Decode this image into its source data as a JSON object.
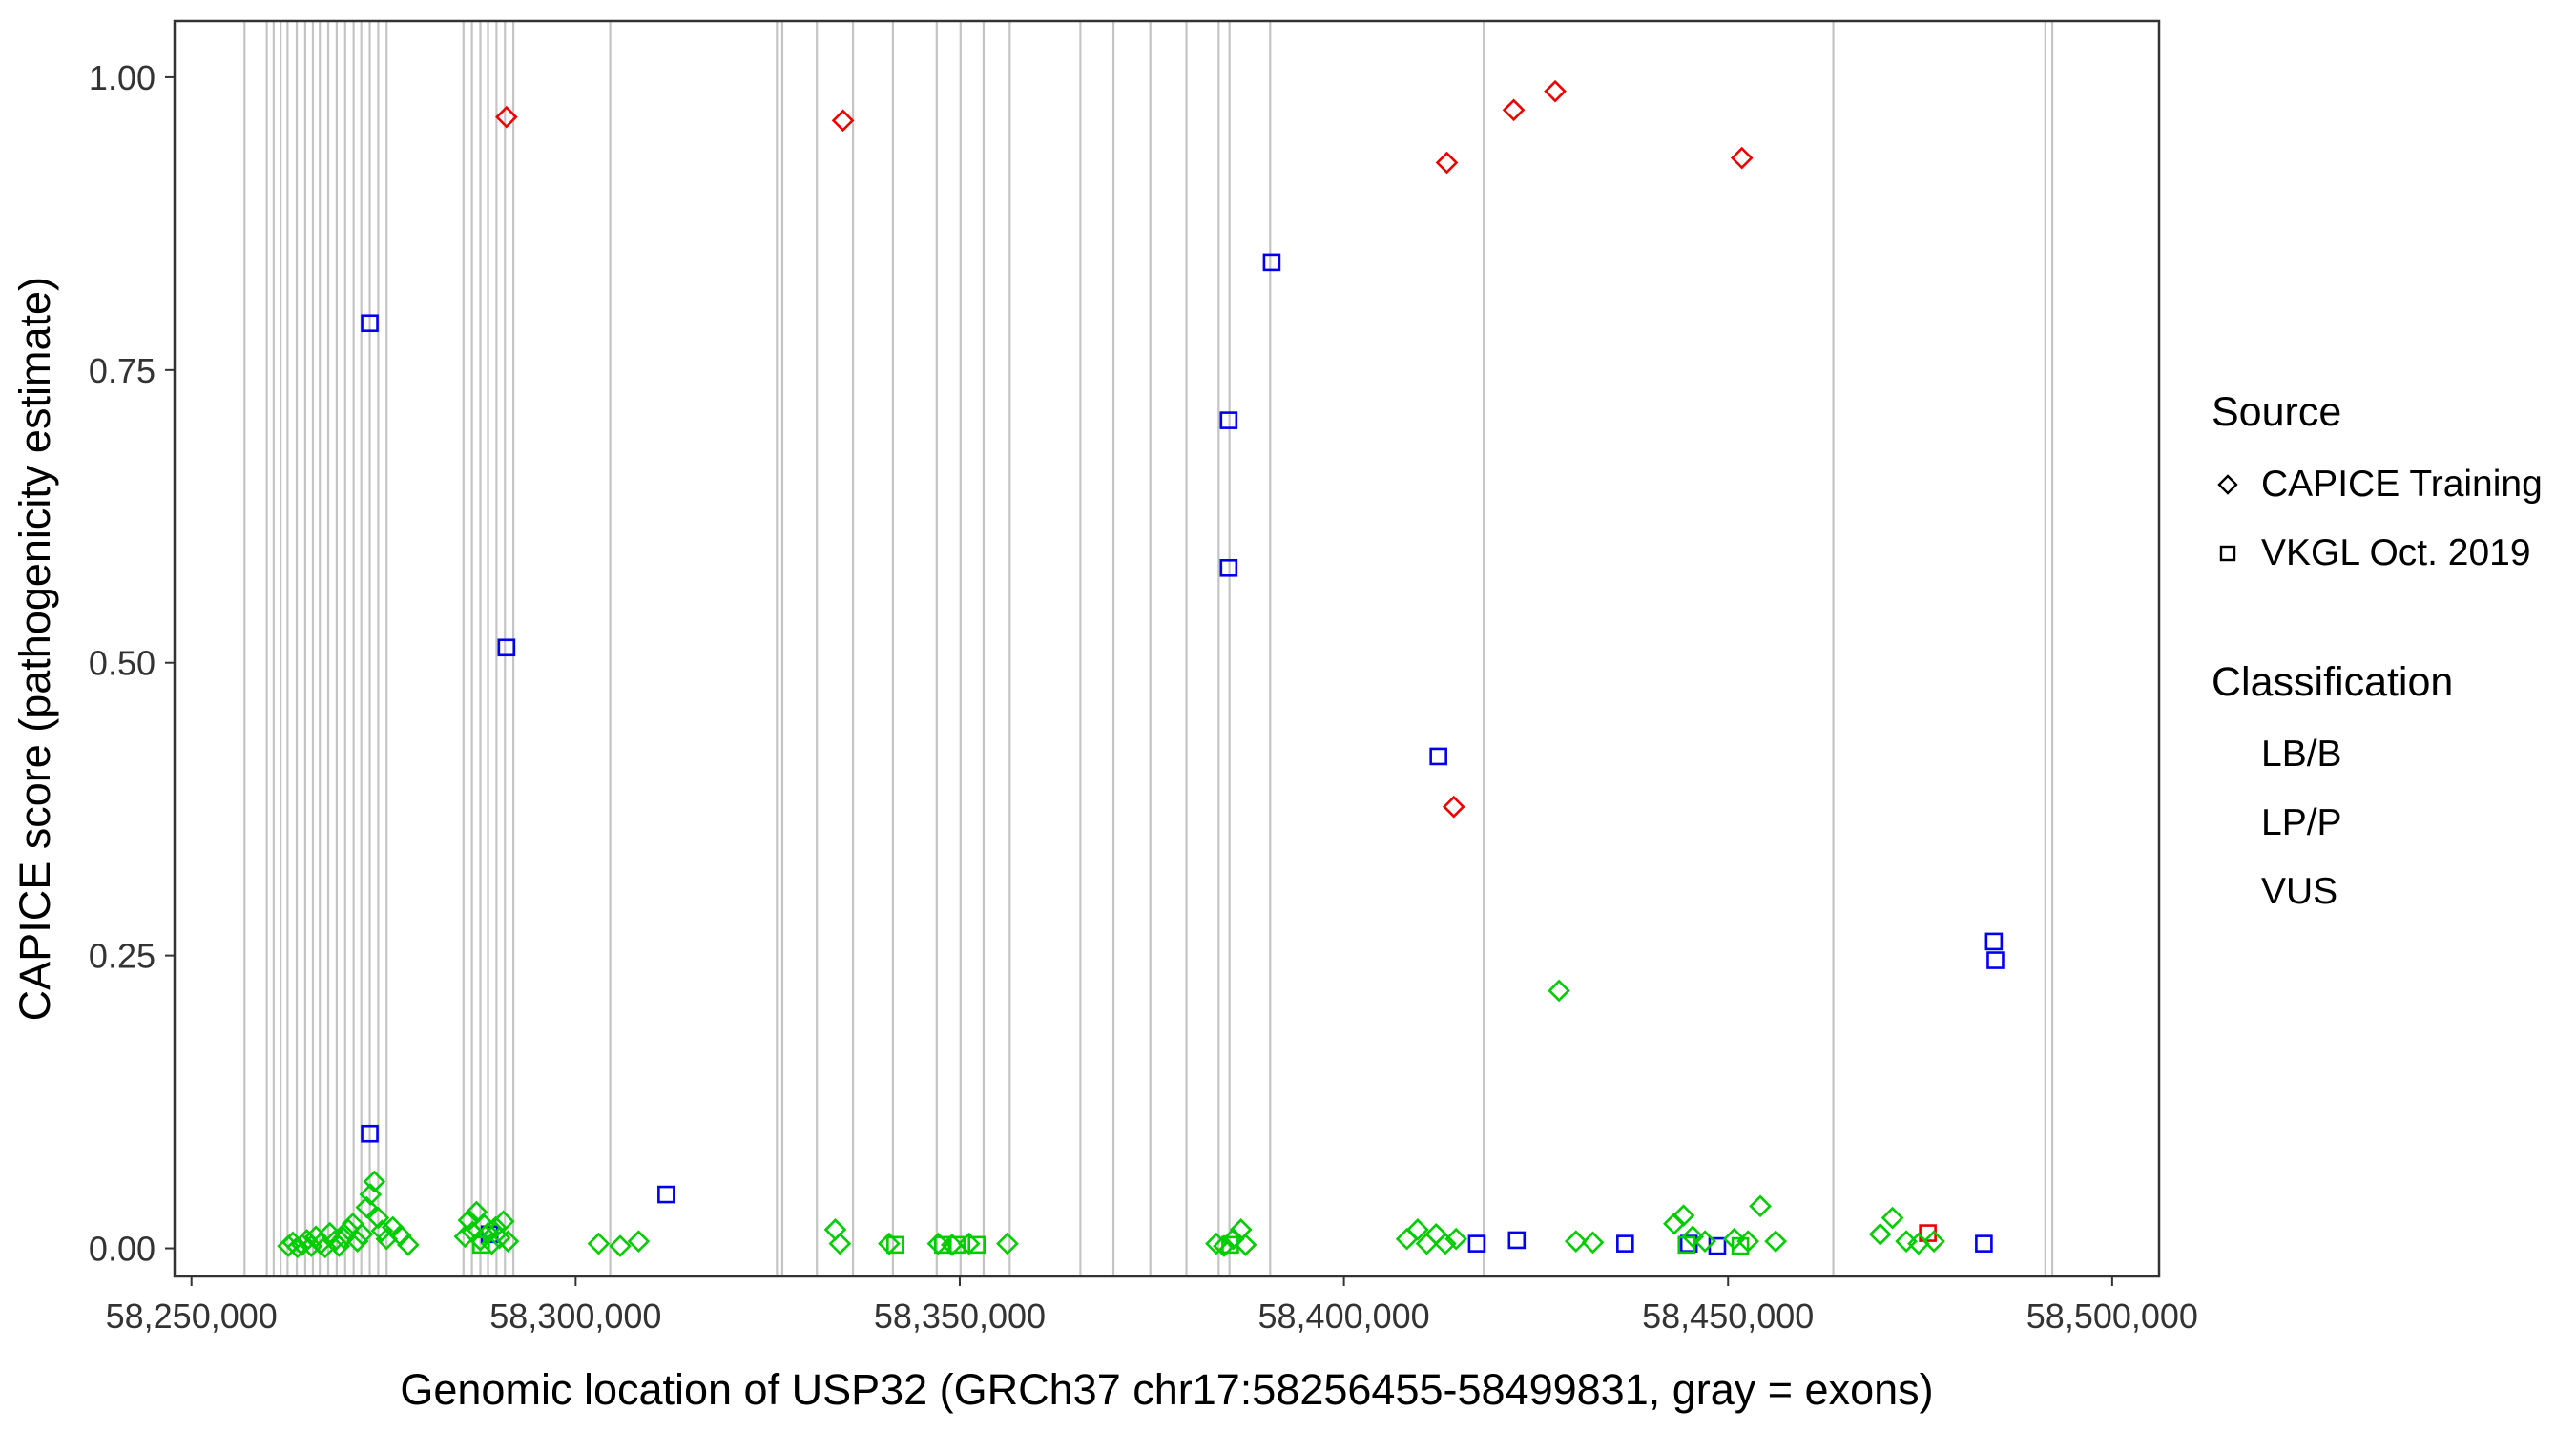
{
  "axes": {
    "x_label": "Genomic location of USP32 (GRCh37 chr17:58256455-58499831, gray = exons)",
    "y_label": "CAPICE score (pathogenicity estimate)"
  },
  "legend": {
    "source_title": "Source",
    "source_items": [
      {
        "label": "CAPICE Training",
        "shape": "diamond"
      },
      {
        "label": "VKGL Oct. 2019",
        "shape": "square"
      }
    ],
    "classification_title": "Classification",
    "classification_items": [
      {
        "label": "LB/B",
        "color": "#00CC00"
      },
      {
        "label": "LP/P",
        "color": "#EE0000"
      },
      {
        "label": "VUS",
        "color": "#0000EE"
      }
    ]
  },
  "chart_data": {
    "type": "scatter",
    "title": "",
    "xlabel": "Genomic location of USP32 (GRCh37 chr17:58256455-58499831, gray = exons)",
    "ylabel": "CAPICE score (pathogenicity estimate)",
    "xlim": [
      58247800,
      58506100
    ],
    "ylim": [
      -0.024,
      1.048
    ],
    "grid": false,
    "x_ticks": [
      {
        "value": 58250000,
        "label": "58,250,000"
      },
      {
        "value": 58300000,
        "label": "58,300,000"
      },
      {
        "value": 58350000,
        "label": "58,350,000"
      },
      {
        "value": 58400000,
        "label": "58,400,000"
      },
      {
        "value": 58450000,
        "label": "58,450,000"
      },
      {
        "value": 58500000,
        "label": "58,500,000"
      }
    ],
    "y_ticks": [
      {
        "value": 0.0,
        "label": "0.00"
      },
      {
        "value": 0.25,
        "label": "0.25"
      },
      {
        "value": 0.5,
        "label": "0.50"
      },
      {
        "value": 0.75,
        "label": "0.75"
      },
      {
        "value": 1.0,
        "label": "1.00"
      }
    ],
    "exon_color": "#C4C4C4",
    "exon_positions": [
      58256900,
      58259800,
      58260700,
      58261600,
      58262500,
      58263700,
      58264800,
      58265800,
      58266700,
      58267800,
      58268900,
      58270000,
      58271100,
      58272100,
      58273200,
      58274300,
      58275400,
      58285400,
      58286500,
      58287600,
      58288600,
      58289700,
      58290800,
      58291900,
      58304500,
      58326200,
      58326900,
      58331400,
      58336100,
      58341300,
      58347000,
      58350100,
      58353100,
      58356500,
      58365700,
      58370000,
      58374800,
      58379500,
      58383700,
      58385100,
      58390400,
      58418200,
      58463700,
      58491300,
      58492200
    ],
    "colors": {
      "LB/B": "#00CC00",
      "LP/P": "#EE0000",
      "VUS": "#0000EE"
    },
    "shapes": {
      "CAPICE Training": "diamond",
      "VKGL Oct. 2019": "square"
    },
    "points": {
      "columns": [
        "genomic_position",
        "capice_score",
        "source",
        "classification"
      ],
      "rows": [
        [
          58291000,
          0.966,
          "CAPICE Training",
          "LP/P"
        ],
        [
          58334800,
          0.963,
          "CAPICE Training",
          "LP/P"
        ],
        [
          58413400,
          0.927,
          "CAPICE Training",
          "LP/P"
        ],
        [
          58422100,
          0.972,
          "CAPICE Training",
          "LP/P"
        ],
        [
          58427500,
          0.988,
          "CAPICE Training",
          "LP/P"
        ],
        [
          58451800,
          0.931,
          "CAPICE Training",
          "LP/P"
        ],
        [
          58414300,
          0.377,
          "CAPICE Training",
          "LP/P"
        ],
        [
          58476000,
          0.013,
          "VKGL Oct. 2019",
          "LP/P"
        ],
        [
          58273200,
          0.79,
          "VKGL Oct. 2019",
          "VUS"
        ],
        [
          58291000,
          0.513,
          "VKGL Oct. 2019",
          "VUS"
        ],
        [
          58390600,
          0.842,
          "VKGL Oct. 2019",
          "VUS"
        ],
        [
          58385000,
          0.707,
          "VKGL Oct. 2019",
          "VUS"
        ],
        [
          58385000,
          0.581,
          "VKGL Oct. 2019",
          "VUS"
        ],
        [
          58412300,
          0.42,
          "VKGL Oct. 2019",
          "VUS"
        ],
        [
          58484600,
          0.262,
          "VKGL Oct. 2019",
          "VUS"
        ],
        [
          58484800,
          0.246,
          "VKGL Oct. 2019",
          "VUS"
        ],
        [
          58273200,
          0.098,
          "VKGL Oct. 2019",
          "VUS"
        ],
        [
          58311800,
          0.046,
          "VKGL Oct. 2019",
          "VUS"
        ],
        [
          58288800,
          0.012,
          "VKGL Oct. 2019",
          "VUS"
        ],
        [
          58417300,
          0.004,
          "VKGL Oct. 2019",
          "VUS"
        ],
        [
          58422500,
          0.007,
          "VKGL Oct. 2019",
          "VUS"
        ],
        [
          58436600,
          0.004,
          "VKGL Oct. 2019",
          "VUS"
        ],
        [
          58444900,
          0.004,
          "VKGL Oct. 2019",
          "VUS"
        ],
        [
          58448600,
          0.002,
          "VKGL Oct. 2019",
          "VUS"
        ],
        [
          58483300,
          0.004,
          "VKGL Oct. 2019",
          "VUS"
        ],
        [
          58428000,
          0.22,
          "CAPICE Training",
          "LB/B"
        ],
        [
          58262600,
          0.002,
          "CAPICE Training",
          "LB/B"
        ],
        [
          58263200,
          0.005,
          "CAPICE Training",
          "LB/B"
        ],
        [
          58263800,
          0.001,
          "CAPICE Training",
          "LB/B"
        ],
        [
          58264400,
          0.003,
          "CAPICE Training",
          "LB/B"
        ],
        [
          58265000,
          0.007,
          "CAPICE Training",
          "LB/B"
        ],
        [
          58265600,
          0.002,
          "CAPICE Training",
          "LB/B"
        ],
        [
          58266200,
          0.01,
          "CAPICE Training",
          "LB/B"
        ],
        [
          58266800,
          0.004,
          "CAPICE Training",
          "LB/B"
        ],
        [
          58267400,
          0.001,
          "CAPICE Training",
          "LB/B"
        ],
        [
          58268000,
          0.013,
          "CAPICE Training",
          "LB/B"
        ],
        [
          58268600,
          0.006,
          "CAPICE Training",
          "LB/B"
        ],
        [
          58269200,
          0.002,
          "CAPICE Training",
          "LB/B"
        ],
        [
          58269800,
          0.009,
          "CAPICE Training",
          "LB/B"
        ],
        [
          58270400,
          0.016,
          "CAPICE Training",
          "LB/B"
        ],
        [
          58271000,
          0.021,
          "CAPICE Training",
          "LB/B"
        ],
        [
          58271600,
          0.006,
          "CAPICE Training",
          "LB/B"
        ],
        [
          58272200,
          0.012,
          "CAPICE Training",
          "LB/B"
        ],
        [
          58272800,
          0.035,
          "CAPICE Training",
          "LB/B"
        ],
        [
          58273300,
          0.046,
          "CAPICE Training",
          "LB/B"
        ],
        [
          58273800,
          0.057,
          "CAPICE Training",
          "LB/B"
        ],
        [
          58274300,
          0.026,
          "CAPICE Training",
          "LB/B"
        ],
        [
          58274800,
          0.015,
          "CAPICE Training",
          "LB/B"
        ],
        [
          58275400,
          0.008,
          "CAPICE Training",
          "LB/B"
        ],
        [
          58276200,
          0.018,
          "CAPICE Training",
          "LB/B"
        ],
        [
          58277200,
          0.011,
          "CAPICE Training",
          "LB/B"
        ],
        [
          58278200,
          0.003,
          "CAPICE Training",
          "LB/B"
        ],
        [
          58285600,
          0.01,
          "CAPICE Training",
          "LB/B"
        ],
        [
          58286100,
          0.024,
          "CAPICE Training",
          "LB/B"
        ],
        [
          58286600,
          0.014,
          "CAPICE Training",
          "LB/B"
        ],
        [
          58287100,
          0.031,
          "CAPICE Training",
          "LB/B"
        ],
        [
          58287600,
          0.007,
          "CAPICE Training",
          "LB/B"
        ],
        [
          58288100,
          0.02,
          "CAPICE Training",
          "LB/B"
        ],
        [
          58288600,
          0.013,
          "CAPICE Training",
          "LB/B"
        ],
        [
          58289100,
          0.004,
          "CAPICE Training",
          "LB/B"
        ],
        [
          58289600,
          0.018,
          "CAPICE Training",
          "LB/B"
        ],
        [
          58290100,
          0.009,
          "CAPICE Training",
          "LB/B"
        ],
        [
          58290600,
          0.023,
          "CAPICE Training",
          "LB/B"
        ],
        [
          58291200,
          0.006,
          "CAPICE Training",
          "LB/B"
        ],
        [
          58303000,
          0.004,
          "CAPICE Training",
          "LB/B"
        ],
        [
          58305800,
          0.002,
          "CAPICE Training",
          "LB/B"
        ],
        [
          58308200,
          0.006,
          "CAPICE Training",
          "LB/B"
        ],
        [
          58333800,
          0.016,
          "CAPICE Training",
          "LB/B"
        ],
        [
          58334400,
          0.004,
          "CAPICE Training",
          "LB/B"
        ],
        [
          58340800,
          0.004,
          "CAPICE Training",
          "LB/B"
        ],
        [
          58347200,
          0.004,
          "CAPICE Training",
          "LB/B"
        ],
        [
          58349000,
          0.003,
          "CAPICE Training",
          "LB/B"
        ],
        [
          58351200,
          0.004,
          "CAPICE Training",
          "LB/B"
        ],
        [
          58356200,
          0.004,
          "CAPICE Training",
          "LB/B"
        ],
        [
          58383400,
          0.004,
          "CAPICE Training",
          "LB/B"
        ],
        [
          58384400,
          0.002,
          "CAPICE Training",
          "LB/B"
        ],
        [
          58385600,
          0.008,
          "CAPICE Training",
          "LB/B"
        ],
        [
          58386600,
          0.016,
          "CAPICE Training",
          "LB/B"
        ],
        [
          58387200,
          0.003,
          "CAPICE Training",
          "LB/B"
        ],
        [
          58408200,
          0.008,
          "CAPICE Training",
          "LB/B"
        ],
        [
          58409600,
          0.016,
          "CAPICE Training",
          "LB/B"
        ],
        [
          58410800,
          0.004,
          "CAPICE Training",
          "LB/B"
        ],
        [
          58412000,
          0.012,
          "CAPICE Training",
          "LB/B"
        ],
        [
          58413200,
          0.004,
          "CAPICE Training",
          "LB/B"
        ],
        [
          58414600,
          0.008,
          "CAPICE Training",
          "LB/B"
        ],
        [
          58430200,
          0.006,
          "CAPICE Training",
          "LB/B"
        ],
        [
          58432400,
          0.005,
          "CAPICE Training",
          "LB/B"
        ],
        [
          58443000,
          0.021,
          "CAPICE Training",
          "LB/B"
        ],
        [
          58444200,
          0.028,
          "CAPICE Training",
          "LB/B"
        ],
        [
          58445400,
          0.01,
          "CAPICE Training",
          "LB/B"
        ],
        [
          58447000,
          0.006,
          "CAPICE Training",
          "LB/B"
        ],
        [
          58450800,
          0.008,
          "CAPICE Training",
          "LB/B"
        ],
        [
          58452600,
          0.006,
          "CAPICE Training",
          "LB/B"
        ],
        [
          58454200,
          0.036,
          "CAPICE Training",
          "LB/B"
        ],
        [
          58456200,
          0.006,
          "CAPICE Training",
          "LB/B"
        ],
        [
          58469800,
          0.012,
          "CAPICE Training",
          "LB/B"
        ],
        [
          58471400,
          0.026,
          "CAPICE Training",
          "LB/B"
        ],
        [
          58473200,
          0.006,
          "CAPICE Training",
          "LB/B"
        ],
        [
          58474800,
          0.004,
          "CAPICE Training",
          "LB/B"
        ],
        [
          58476800,
          0.006,
          "CAPICE Training",
          "LB/B"
        ],
        [
          58341600,
          0.003,
          "VKGL Oct. 2019",
          "LB/B"
        ],
        [
          58347800,
          0.003,
          "VKGL Oct. 2019",
          "LB/B"
        ],
        [
          58349600,
          0.003,
          "VKGL Oct. 2019",
          "LB/B"
        ],
        [
          58352200,
          0.003,
          "VKGL Oct. 2019",
          "LB/B"
        ],
        [
          58385200,
          0.003,
          "VKGL Oct. 2019",
          "LB/B"
        ],
        [
          58287700,
          0.003,
          "VKGL Oct. 2019",
          "LB/B"
        ],
        [
          58444600,
          0.003,
          "VKGL Oct. 2019",
          "LB/B"
        ],
        [
          58451600,
          0.002,
          "VKGL Oct. 2019",
          "LB/B"
        ]
      ]
    }
  }
}
